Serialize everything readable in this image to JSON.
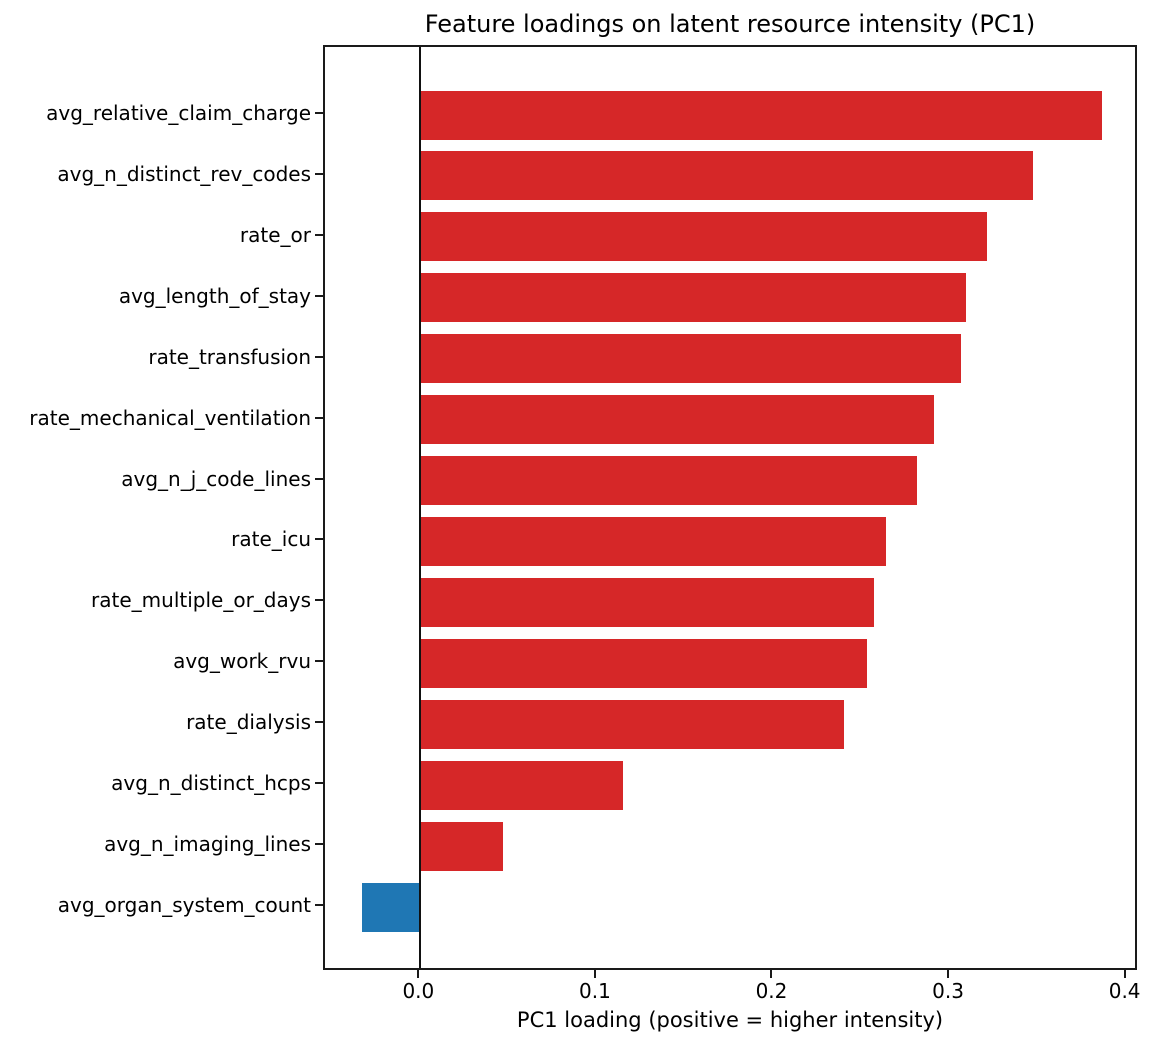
{
  "chart_data": {
    "type": "bar",
    "orientation": "horizontal",
    "title": "Feature loadings on latent resource intensity (PC1)",
    "xlabel": "PC1 loading (positive = higher intensity)",
    "ylabel": "",
    "categories": [
      "avg_relative_claim_charge",
      "avg_n_distinct_rev_codes",
      "rate_or",
      "avg_length_of_stay",
      "rate_transfusion",
      "rate_mechanical_ventilation",
      "avg_n_j_code_lines",
      "rate_icu",
      "rate_multiple_or_days",
      "avg_work_rvu",
      "rate_dialysis",
      "avg_n_distinct_hcps",
      "avg_n_imaging_lines",
      "avg_organ_system_count"
    ],
    "values": [
      0.386,
      0.347,
      0.321,
      0.309,
      0.306,
      0.291,
      0.281,
      0.264,
      0.257,
      0.253,
      0.24,
      0.115,
      0.047,
      -0.033
    ],
    "xlim": [
      -0.054,
      0.407
    ],
    "x_tick_values": [
      0.0,
      0.1,
      0.2,
      0.3,
      0.4
    ],
    "x_tick_labels": [
      "0.0",
      "0.1",
      "0.2",
      "0.3",
      "0.4"
    ],
    "positive_color": "#d62728",
    "negative_color": "#1f77b4",
    "grid": false,
    "zero_line": true,
    "legend": "none"
  }
}
